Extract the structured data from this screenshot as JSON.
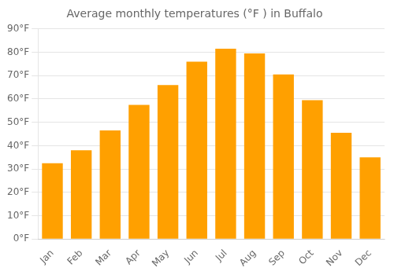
{
  "chart_data": {
    "type": "bar",
    "title": "Average monthly temperatures (°F ) in Buffalo",
    "categories": [
      "Jan",
      "Feb",
      "Mar",
      "Apr",
      "May",
      "Jun",
      "Jul",
      "Aug",
      "Sep",
      "Oct",
      "Nov",
      "Dec"
    ],
    "values": [
      32.5,
      38.0,
      46.5,
      57.5,
      66.0,
      76.0,
      81.5,
      79.5,
      70.5,
      59.5,
      45.5,
      35.0
    ],
    "color": "#FFA000",
    "ylim": [
      0,
      90
    ],
    "yticks": [
      {
        "value": 0,
        "label": "0°F"
      },
      {
        "value": 10,
        "label": "10°F"
      },
      {
        "value": 20,
        "label": "20°F"
      },
      {
        "value": 30,
        "label": "30°F"
      },
      {
        "value": 40,
        "label": "40°F"
      },
      {
        "value": 50,
        "label": "50°F"
      },
      {
        "value": 60,
        "label": "60°F"
      },
      {
        "value": 70,
        "label": "70°F"
      },
      {
        "value": 80,
        "label": "80°F"
      },
      {
        "value": 90,
        "label": "90°F"
      }
    ],
    "grid": true
  }
}
